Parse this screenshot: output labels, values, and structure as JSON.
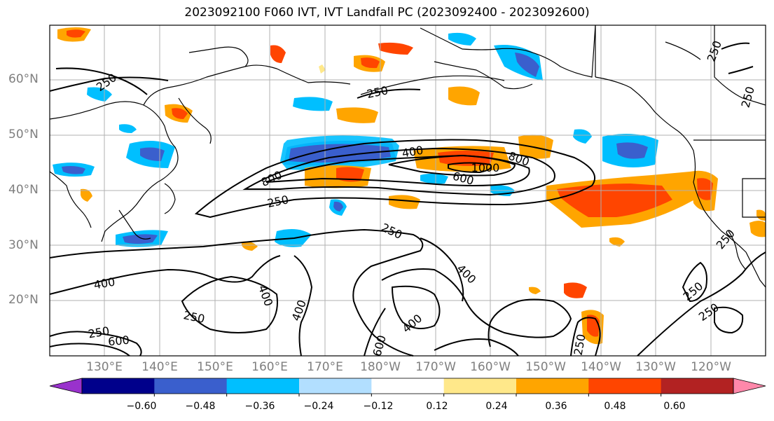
{
  "title": "2023092100 F060 IVT, IVT Landfall PC (2023092400 - 2023092600)",
  "lat_labels": [
    "60°N",
    "50°N",
    "40°N",
    "30°N",
    "20°N"
  ],
  "lon_labels": [
    "130°E",
    "140°E",
    "150°E",
    "160°E",
    "170°E",
    "180°W",
    "170°W",
    "160°W",
    "150°W",
    "140°W",
    "130°W",
    "120°W"
  ],
  "contour_labels": [
    "250",
    "250",
    "250",
    "250",
    "250",
    "250",
    "250",
    "250",
    "250",
    "250",
    "250",
    "250",
    "400",
    "400",
    "400",
    "400",
    "400",
    "400",
    "600",
    "600",
    "600",
    "800",
    "800",
    "1000"
  ],
  "colorbar": {
    "tick_labels": [
      "−0.60",
      "−0.48",
      "−0.36",
      "−0.24",
      "−0.12",
      "0.12",
      "0.24",
      "0.36",
      "0.48",
      "0.60"
    ],
    "colors": [
      "#9932cc",
      "#00008b",
      "#3a5fcd",
      "#00bfff",
      "#b2dfff",
      "#ffffff",
      "#ffe88a",
      "#ffa500",
      "#ff4500",
      "#b22222",
      "#ff88aa"
    ]
  },
  "fill_colors": {
    "blue_dark": "#3a5fcd",
    "blue_mid": "#00bfff",
    "blue_light": "#b2dfff",
    "yellow": "#ffe88a",
    "orange": "#ffa500",
    "red_orange": "#ff4500",
    "dark_red": "#b22222"
  }
}
